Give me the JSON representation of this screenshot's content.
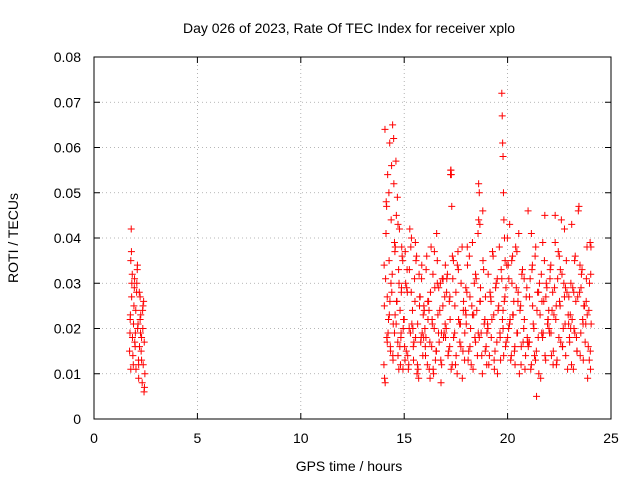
{
  "chart_data": {
    "type": "scatter",
    "title": "Day 026 of 2023, Rate Of TEC Index for receiver xplo",
    "xlabel": "GPS time / hours",
    "ylabel": "ROTI / TECUs",
    "xlim": [
      0,
      25
    ],
    "ylim": [
      0,
      0.08
    ],
    "xticks": [
      0,
      5,
      10,
      15,
      20,
      25
    ],
    "xtick_labels": [
      "0",
      "5",
      "10",
      "15",
      "20",
      "25"
    ],
    "yticks": [
      0,
      0.01,
      0.02,
      0.03,
      0.04,
      0.05,
      0.06,
      0.07,
      0.08
    ],
    "ytick_labels": [
      "0",
      "0.01",
      "0.02",
      "0.03",
      "0.04",
      "0.05",
      "0.06",
      "0.07",
      "0.08"
    ],
    "grid": true,
    "marker": "+",
    "color": "#ff0000",
    "series": [
      {
        "name": "ROTI",
        "x": [
          1.72,
          1.75,
          1.78,
          1.8,
          1.83,
          1.86,
          1.9,
          1.93,
          1.96,
          2.0,
          2.03,
          2.06,
          2.1,
          2.13,
          2.16,
          2.2,
          2.23,
          2.26,
          2.3,
          2.33,
          2.36,
          2.4,
          2.43,
          2.46,
          1.74,
          1.81,
          1.88,
          1.95,
          2.02,
          2.09,
          2.16,
          2.23,
          2.3,
          2.37,
          2.44,
          1.78,
          1.82,
          1.91,
          1.99,
          2.07,
          2.15,
          2.25,
          2.35,
          2.42,
          1.76,
          1.85,
          1.97,
          2.11,
          2.19,
          2.28,
          2.38,
          14.02,
          14.04,
          14.07,
          14.1,
          14.13,
          14.16,
          14.2,
          14.24,
          14.27,
          14.3,
          14.33,
          14.37,
          14.4,
          14.44,
          14.47,
          14.5,
          14.53,
          14.57,
          14.6,
          14.63,
          14.67,
          14.7,
          14.73,
          14.77,
          14.8,
          14.84,
          14.87,
          14.9,
          14.94,
          14.97,
          14.05,
          14.12,
          14.18,
          14.26,
          14.34,
          14.42,
          14.49,
          14.56,
          14.62,
          14.69,
          14.75,
          14.82,
          14.88,
          14.95,
          14.03,
          14.15,
          14.22,
          14.31,
          14.39,
          14.46,
          14.53,
          14.61,
          14.7,
          14.79,
          14.86,
          14.93,
          14.08,
          14.18,
          14.28,
          14.36,
          14.45,
          14.55,
          14.65,
          14.74,
          14.85,
          15.0,
          15.05,
          15.1,
          15.15,
          15.2,
          15.25,
          15.3,
          15.35,
          15.4,
          15.45,
          15.5,
          15.55,
          15.6,
          15.65,
          15.7,
          15.75,
          15.8,
          15.85,
          15.9,
          15.95,
          15.02,
          15.12,
          15.22,
          15.32,
          15.42,
          15.52,
          15.62,
          15.72,
          15.82,
          15.92,
          15.07,
          15.17,
          15.27,
          15.37,
          15.47,
          15.57,
          15.67,
          15.77,
          15.87,
          15.97,
          15.04,
          15.14,
          15.24,
          15.34,
          15.44,
          15.54,
          15.64,
          15.74,
          15.84,
          15.94,
          16.0,
          16.06,
          16.12,
          16.18,
          16.24,
          16.3,
          16.36,
          16.42,
          16.48,
          16.54,
          16.6,
          16.66,
          16.72,
          16.78,
          16.84,
          16.9,
          16.96,
          16.03,
          16.09,
          16.15,
          16.21,
          16.27,
          16.33,
          16.39,
          16.45,
          16.51,
          16.57,
          16.63,
          16.69,
          16.75,
          16.81,
          16.87,
          16.93,
          16.99,
          16.05,
          16.14,
          16.25,
          16.35,
          16.46,
          16.56,
          16.67,
          16.77,
          16.88,
          16.98,
          16.02,
          16.2,
          16.4,
          16.6,
          16.8,
          17.0,
          17.06,
          17.12,
          17.18,
          17.22,
          17.25,
          17.28,
          17.32,
          17.38,
          17.44,
          17.5,
          17.56,
          17.62,
          17.68,
          17.74,
          17.8,
          17.86,
          17.92,
          17.98,
          17.03,
          17.09,
          17.15,
          17.21,
          17.27,
          17.33,
          17.39,
          17.45,
          17.51,
          17.57,
          17.63,
          17.69,
          17.75,
          17.81,
          17.87,
          17.93,
          17.99,
          17.05,
          17.2,
          17.35,
          17.48,
          17.6,
          17.72,
          17.84,
          17.96,
          17.24,
          17.26,
          17.3,
          18.0,
          18.06,
          18.12,
          18.18,
          18.24,
          18.3,
          18.36,
          18.42,
          18.48,
          18.54,
          18.6,
          18.66,
          18.72,
          18.78,
          18.84,
          18.9,
          18.96,
          18.03,
          18.09,
          18.15,
          18.21,
          18.27,
          18.33,
          18.39,
          18.45,
          18.51,
          18.57,
          18.63,
          18.69,
          18.75,
          18.81,
          18.87,
          18.93,
          18.99,
          18.05,
          18.18,
          18.3,
          18.45,
          18.58,
          18.68,
          18.8,
          18.92,
          18.6,
          18.63,
          18.66,
          19.0,
          19.06,
          19.12,
          19.18,
          19.24,
          19.3,
          19.36,
          19.42,
          19.48,
          19.54,
          19.6,
          19.66,
          19.72,
          19.78,
          19.84,
          19.9,
          19.96,
          19.03,
          19.09,
          19.15,
          19.21,
          19.27,
          19.33,
          19.39,
          19.45,
          19.51,
          19.57,
          19.63,
          19.69,
          19.75,
          19.81,
          19.87,
          19.93,
          19.99,
          19.05,
          19.2,
          19.35,
          19.5,
          19.64,
          19.78,
          19.92,
          19.72,
          19.74,
          19.76,
          19.78,
          19.8,
          19.82,
          19.85,
          19.88,
          20.0,
          20.06,
          20.12,
          20.18,
          20.24,
          20.3,
          20.36,
          20.42,
          20.48,
          20.54,
          20.6,
          20.66,
          20.72,
          20.78,
          20.84,
          20.9,
          20.96,
          20.03,
          20.09,
          20.15,
          20.21,
          20.27,
          20.33,
          20.39,
          20.45,
          20.51,
          20.57,
          20.63,
          20.69,
          20.75,
          20.81,
          20.87,
          20.93,
          20.99,
          20.05,
          20.2,
          20.35,
          20.5,
          20.65,
          20.8,
          20.95,
          20.1,
          20.25,
          20.45,
          21.0,
          21.06,
          21.12,
          21.18,
          21.24,
          21.3,
          21.36,
          21.42,
          21.48,
          21.54,
          21.6,
          21.66,
          21.72,
          21.78,
          21.84,
          21.9,
          21.96,
          21.03,
          21.09,
          21.15,
          21.21,
          21.27,
          21.33,
          21.39,
          21.45,
          21.51,
          21.57,
          21.63,
          21.69,
          21.75,
          21.81,
          21.87,
          21.93,
          21.99,
          21.05,
          21.2,
          21.35,
          21.5,
          21.65,
          21.8,
          21.95,
          21.15,
          21.4,
          21.7,
          21.85,
          22.0,
          22.06,
          22.12,
          22.18,
          22.24,
          22.3,
          22.36,
          22.42,
          22.48,
          22.54,
          22.6,
          22.66,
          22.72,
          22.78,
          22.84,
          22.9,
          22.96,
          22.03,
          22.09,
          22.15,
          22.21,
          22.27,
          22.33,
          22.39,
          22.45,
          22.51,
          22.57,
          22.63,
          22.69,
          22.75,
          22.81,
          22.87,
          22.93,
          22.99,
          22.05,
          22.2,
          22.35,
          22.5,
          22.65,
          22.8,
          22.95,
          22.1,
          22.3,
          22.55,
          22.75,
          23.0,
          23.06,
          23.12,
          23.18,
          23.24,
          23.3,
          23.36,
          23.42,
          23.48,
          23.54,
          23.6,
          23.66,
          23.72,
          23.78,
          23.84,
          23.9,
          23.96,
          23.03,
          23.09,
          23.15,
          23.21,
          23.27,
          23.33,
          23.39,
          23.45,
          23.51,
          23.57,
          23.63,
          23.69,
          23.75,
          23.81,
          23.87,
          23.93,
          23.99,
          23.05,
          23.2,
          23.35,
          23.5,
          23.65,
          23.8,
          23.95,
          23.1,
          23.25,
          23.55,
          23.85,
          24.0,
          24.02,
          24.04,
          24.03,
          24.01
        ],
        "y": [
          0.015,
          0.022,
          0.035,
          0.042,
          0.03,
          0.018,
          0.012,
          0.025,
          0.031,
          0.019,
          0.011,
          0.028,
          0.034,
          0.021,
          0.009,
          0.016,
          0.027,
          0.023,
          0.013,
          0.008,
          0.02,
          0.026,
          0.017,
          0.01,
          0.019,
          0.037,
          0.014,
          0.029,
          0.024,
          0.033,
          0.012,
          0.022,
          0.018,
          0.025,
          0.007,
          0.011,
          0.027,
          0.021,
          0.016,
          0.03,
          0.013,
          0.019,
          0.024,
          0.006,
          0.023,
          0.032,
          0.017,
          0.02,
          0.028,
          0.015,
          0.012,
          0.012,
          0.025,
          0.064,
          0.031,
          0.048,
          0.018,
          0.054,
          0.022,
          0.035,
          0.061,
          0.016,
          0.044,
          0.028,
          0.065,
          0.021,
          0.052,
          0.019,
          0.038,
          0.057,
          0.026,
          0.049,
          0.014,
          0.033,
          0.042,
          0.024,
          0.018,
          0.029,
          0.036,
          0.011,
          0.022,
          0.009,
          0.041,
          0.027,
          0.05,
          0.015,
          0.032,
          0.062,
          0.023,
          0.045,
          0.017,
          0.03,
          0.012,
          0.038,
          0.02,
          0.034,
          0.047,
          0.019,
          0.026,
          0.056,
          0.013,
          0.039,
          0.021,
          0.043,
          0.016,
          0.028,
          0.035,
          0.008,
          0.017,
          0.023,
          0.03,
          0.014,
          0.037,
          0.026,
          0.011,
          0.019,
          0.022,
          0.037,
          0.015,
          0.028,
          0.011,
          0.033,
          0.019,
          0.04,
          0.024,
          0.013,
          0.031,
          0.018,
          0.036,
          0.021,
          0.009,
          0.027,
          0.017,
          0.034,
          0.014,
          0.025,
          0.016,
          0.029,
          0.012,
          0.038,
          0.02,
          0.026,
          0.01,
          0.032,
          0.018,
          0.023,
          0.03,
          0.014,
          0.042,
          0.021,
          0.017,
          0.035,
          0.011,
          0.027,
          0.019,
          0.024,
          0.013,
          0.033,
          0.02,
          0.028,
          0.016,
          0.039,
          0.012,
          0.025,
          0.031,
          0.018,
          0.02,
          0.033,
          0.012,
          0.026,
          0.017,
          0.038,
          0.021,
          0.01,
          0.029,
          0.015,
          0.035,
          0.019,
          0.024,
          0.008,
          0.031,
          0.018,
          0.027,
          0.014,
          0.036,
          0.022,
          0.011,
          0.028,
          0.016,
          0.032,
          0.02,
          0.013,
          0.041,
          0.023,
          0.017,
          0.03,
          0.012,
          0.025,
          0.019,
          0.034,
          0.018,
          0.026,
          0.009,
          0.022,
          0.037,
          0.015,
          0.029,
          0.013,
          0.031,
          0.021,
          0.016,
          0.024,
          0.011,
          0.03,
          0.019,
          0.018,
          0.031,
          0.014,
          0.026,
          0.022,
          0.055,
          0.054,
          0.012,
          0.035,
          0.019,
          0.028,
          0.01,
          0.033,
          0.021,
          0.016,
          0.038,
          0.024,
          0.013,
          0.029,
          0.02,
          0.032,
          0.015,
          0.027,
          0.011,
          0.036,
          0.018,
          0.025,
          0.014,
          0.034,
          0.022,
          0.017,
          0.03,
          0.009,
          0.026,
          0.019,
          0.023,
          0.028,
          0.016,
          0.031,
          0.012,
          0.037,
          0.021,
          0.015,
          0.024,
          0.054,
          0.055,
          0.047,
          0.021,
          0.034,
          0.015,
          0.027,
          0.012,
          0.039,
          0.023,
          0.018,
          0.031,
          0.014,
          0.044,
          0.026,
          0.019,
          0.01,
          0.033,
          0.022,
          0.016,
          0.028,
          0.013,
          0.036,
          0.02,
          0.025,
          0.011,
          0.03,
          0.017,
          0.024,
          0.041,
          0.018,
          0.029,
          0.014,
          0.035,
          0.021,
          0.027,
          0.012,
          0.038,
          0.016,
          0.023,
          0.032,
          0.019,
          0.026,
          0.046,
          0.015,
          0.052,
          0.05,
          0.043,
          0.019,
          0.032,
          0.014,
          0.027,
          0.022,
          0.036,
          0.011,
          0.029,
          0.017,
          0.024,
          0.038,
          0.013,
          0.031,
          0.02,
          0.026,
          0.016,
          0.034,
          0.021,
          0.012,
          0.028,
          0.018,
          0.037,
          0.023,
          0.015,
          0.03,
          0.01,
          0.025,
          0.019,
          0.033,
          0.022,
          0.014,
          0.027,
          0.017,
          0.04,
          0.02,
          0.026,
          0.013,
          0.031,
          0.018,
          0.024,
          0.029,
          0.072,
          0.067,
          0.061,
          0.058,
          0.05,
          0.044,
          0.04,
          0.035,
          0.018,
          0.031,
          0.022,
          0.014,
          0.036,
          0.026,
          0.012,
          0.029,
          0.019,
          0.041,
          0.024,
          0.016,
          0.033,
          0.02,
          0.011,
          0.027,
          0.017,
          0.034,
          0.021,
          0.013,
          0.03,
          0.023,
          0.015,
          0.038,
          0.019,
          0.028,
          0.01,
          0.025,
          0.032,
          0.017,
          0.022,
          0.014,
          0.029,
          0.046,
          0.02,
          0.035,
          0.016,
          0.026,
          0.012,
          0.031,
          0.018,
          0.043,
          0.023,
          0.037,
          0.016,
          0.027,
          0.011,
          0.033,
          0.021,
          0.014,
          0.038,
          0.024,
          0.018,
          0.03,
          0.009,
          0.026,
          0.019,
          0.035,
          0.013,
          0.029,
          0.022,
          0.017,
          0.031,
          0.012,
          0.025,
          0.02,
          0.036,
          0.015,
          0.028,
          0.01,
          0.023,
          0.032,
          0.018,
          0.026,
          0.014,
          0.03,
          0.021,
          0.024,
          0.017,
          0.034,
          0.013,
          0.028,
          0.019,
          0.045,
          0.022,
          0.041,
          0.005,
          0.039,
          0.027,
          0.02,
          0.033,
          0.014,
          0.028,
          0.023,
          0.039,
          0.012,
          0.031,
          0.018,
          0.025,
          0.044,
          0.016,
          0.03,
          0.021,
          0.035,
          0.011,
          0.027,
          0.019,
          0.034,
          0.024,
          0.015,
          0.029,
          0.022,
          0.013,
          0.037,
          0.026,
          0.017,
          0.032,
          0.02,
          0.042,
          0.014,
          0.028,
          0.023,
          0.018,
          0.031,
          0.012,
          0.025,
          0.036,
          0.016,
          0.029,
          0.021,
          0.019,
          0.045,
          0.033,
          0.027,
          0.017,
          0.03,
          0.022,
          0.011,
          0.035,
          0.026,
          0.015,
          0.046,
          0.028,
          0.019,
          0.033,
          0.013,
          0.025,
          0.021,
          0.038,
          0.016,
          0.03,
          0.023,
          0.012,
          0.029,
          0.02,
          0.036,
          0.018,
          0.027,
          0.047,
          0.014,
          0.032,
          0.022,
          0.025,
          0.017,
          0.031,
          0.009,
          0.024,
          0.039,
          0.02,
          0.028,
          0.015,
          0.034,
          0.021,
          0.026,
          0.013,
          0.043,
          0.019,
          0.029,
          0.023,
          0.015,
          0.032,
          0.021,
          0.038,
          0.011
        ]
      }
    ]
  }
}
